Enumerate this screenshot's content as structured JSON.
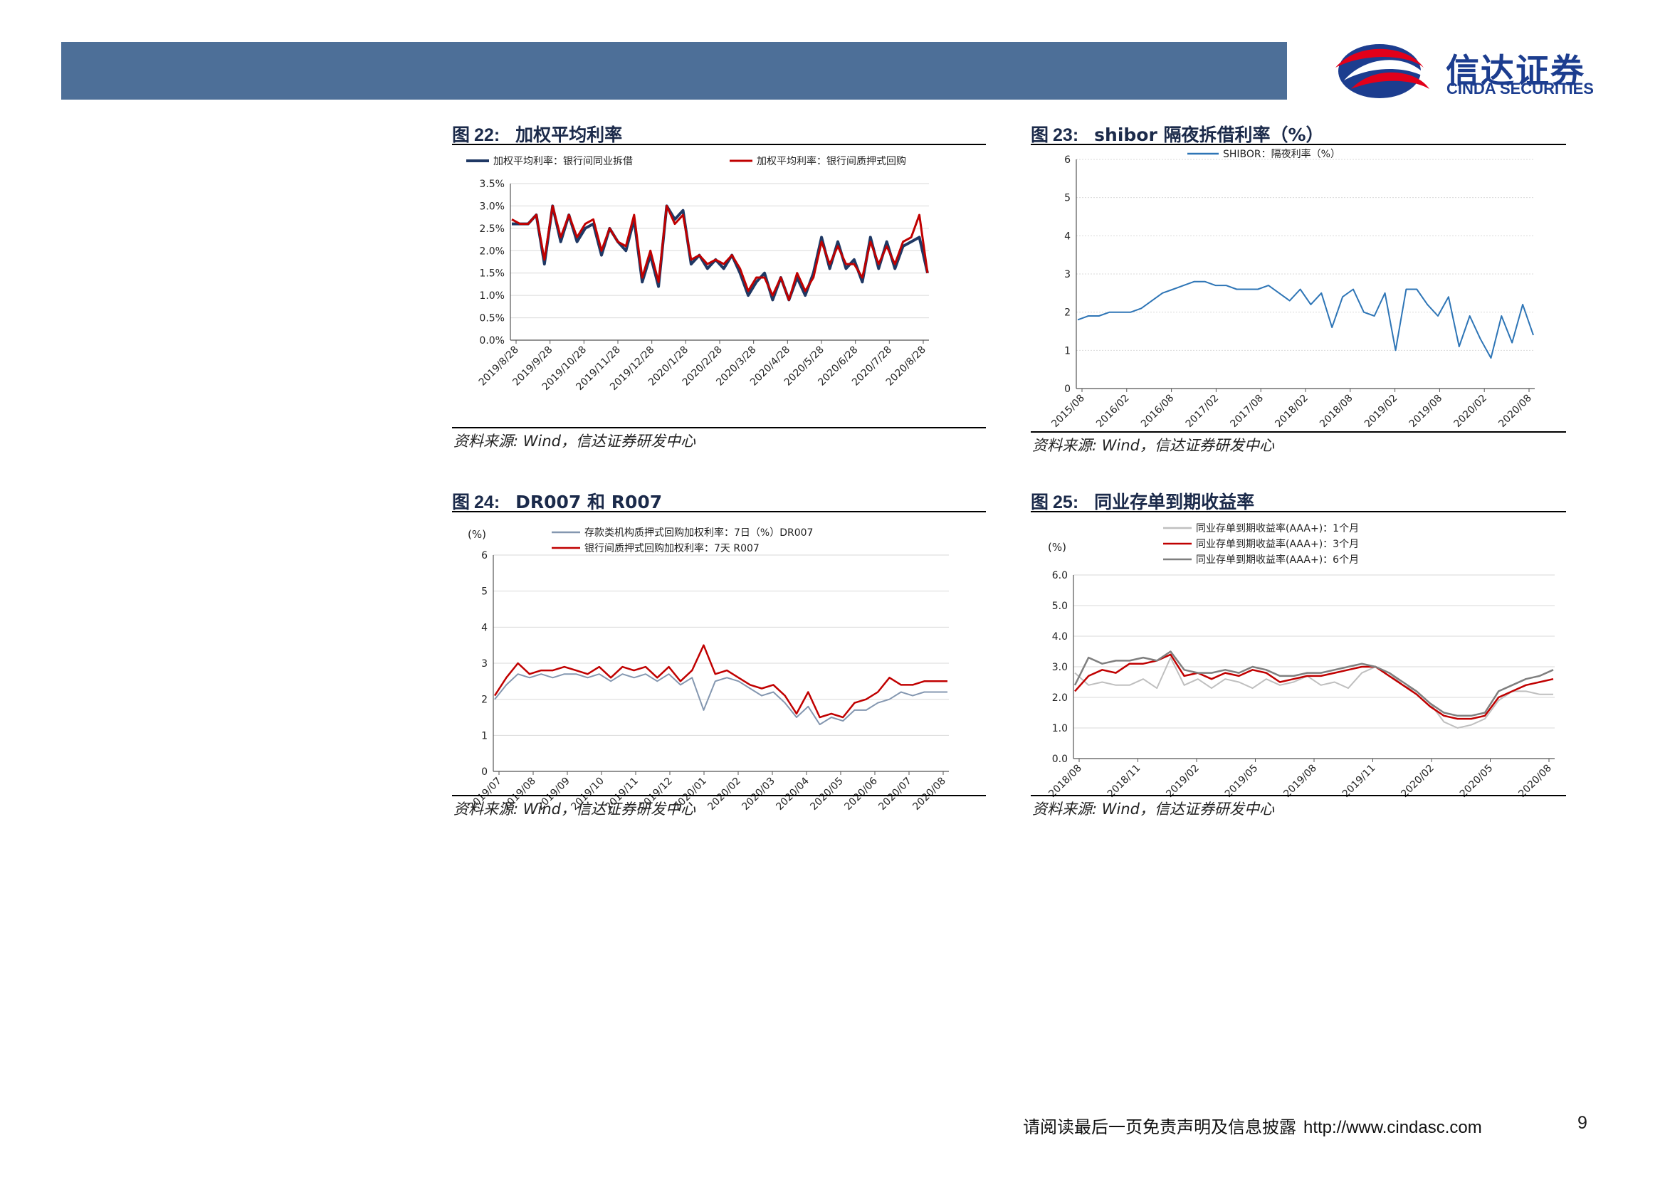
{
  "header": {
    "logo_cn": "信达证券",
    "logo_en": "CINDA SECURITIES",
    "bar_color": "#4d6f98"
  },
  "figures": [
    {
      "label": "图",
      "number": "22:",
      "title": "加权平均利率",
      "source": "资料来源: Wind，信达证券研发中心"
    },
    {
      "label": "图",
      "number": "23:",
      "title": "shibor 隔夜拆借利率（%）",
      "source": "资料来源: Wind，信达证券研发中心"
    },
    {
      "label": "图",
      "number": "24:",
      "title": "DR007 和 R007",
      "source": "资料来源: Wind，信达证券研发中心"
    },
    {
      "label": "图",
      "number": "25:",
      "title": "同业存单到期收益率",
      "source": "资料来源: Wind，信达证券研发中心"
    }
  ],
  "chart_data": [
    {
      "type": "line",
      "ylabel": "",
      "ylim": [
        0,
        3.5
      ],
      "y_ticks": [
        "0.0%",
        "0.5%",
        "1.0%",
        "1.5%",
        "2.0%",
        "2.5%",
        "3.0%",
        "3.5%"
      ],
      "x_ticks": [
        "2019/8/28",
        "2019/9/28",
        "2019/10/28",
        "2019/11/28",
        "2019/12/28",
        "2020/1/28",
        "2020/2/28",
        "2020/3/28",
        "2020/4/28",
        "2020/5/28",
        "2020/6/28",
        "2020/7/28",
        "2020/8/28"
      ],
      "legend": "top",
      "series": [
        {
          "name": "加权平均利率：银行间同业拆借",
          "color": "#1f3864",
          "values": [
            2.6,
            2.6,
            2.6,
            2.8,
            1.7,
            3.0,
            2.2,
            2.8,
            2.2,
            2.5,
            2.6,
            1.9,
            2.5,
            2.2,
            2.0,
            2.7,
            1.3,
            1.9,
            1.2,
            3.0,
            2.7,
            2.9,
            1.7,
            1.9,
            1.6,
            1.8,
            1.6,
            1.9,
            1.5,
            1.0,
            1.3,
            1.5,
            0.9,
            1.4,
            0.9,
            1.4,
            1.0,
            1.5,
            2.3,
            1.6,
            2.2,
            1.6,
            1.8,
            1.3,
            2.3,
            1.6,
            2.2,
            1.6,
            2.1,
            2.2,
            2.3,
            1.5
          ]
        },
        {
          "name": "加权平均利率：银行间质押式回购",
          "color": "#c00000",
          "values": [
            2.7,
            2.6,
            2.6,
            2.8,
            1.8,
            3.0,
            2.3,
            2.8,
            2.3,
            2.6,
            2.7,
            2.0,
            2.5,
            2.2,
            2.1,
            2.8,
            1.4,
            2.0,
            1.3,
            3.0,
            2.6,
            2.8,
            1.8,
            1.9,
            1.7,
            1.8,
            1.7,
            1.9,
            1.6,
            1.1,
            1.4,
            1.4,
            1.0,
            1.4,
            0.9,
            1.5,
            1.1,
            1.4,
            2.2,
            1.7,
            2.1,
            1.7,
            1.7,
            1.4,
            2.2,
            1.7,
            2.1,
            1.7,
            2.2,
            2.3,
            2.8,
            1.5
          ]
        }
      ]
    },
    {
      "type": "line",
      "ylim": [
        0,
        6
      ],
      "y_ticks": [
        "0",
        "1",
        "2",
        "3",
        "4",
        "5",
        "6"
      ],
      "x_ticks": [
        "2015/08",
        "2016/02",
        "2016/08",
        "2017/02",
        "2017/08",
        "2018/02",
        "2018/08",
        "2019/02",
        "2019/08",
        "2020/02",
        "2020/08"
      ],
      "legend": "top",
      "series": [
        {
          "name": "SHIBOR：隔夜利率（%）",
          "color": "#2e75b6",
          "values": [
            1.8,
            1.9,
            1.9,
            2.0,
            2.0,
            2.0,
            2.1,
            2.3,
            2.5,
            2.6,
            2.7,
            2.8,
            2.8,
            2.7,
            2.7,
            2.6,
            2.6,
            2.6,
            2.7,
            2.5,
            2.3,
            2.6,
            2.2,
            2.5,
            1.6,
            2.4,
            2.6,
            2.0,
            1.9,
            2.5,
            1.0,
            2.6,
            2.6,
            2.2,
            1.9,
            2.4,
            1.1,
            1.9,
            1.3,
            0.8,
            1.9,
            1.2,
            2.2,
            1.4
          ]
        }
      ]
    },
    {
      "type": "line",
      "ylabel": "(%)",
      "ylim": [
        0,
        6
      ],
      "y_ticks": [
        "0",
        "1",
        "2",
        "3",
        "4",
        "5",
        "6"
      ],
      "x_ticks": [
        "2019/07",
        "2019/08",
        "2019/09",
        "2019/10",
        "2019/11",
        "2019/12",
        "2020/01",
        "2020/02",
        "2020/03",
        "2020/04",
        "2020/05",
        "2020/06",
        "2020/07",
        "2020/08"
      ],
      "legend": "top",
      "series": [
        {
          "name": "存款类机构质押式回购加权利率：7日（%）DR007",
          "color": "#8497b0",
          "values": [
            2.0,
            2.4,
            2.7,
            2.6,
            2.7,
            2.6,
            2.7,
            2.7,
            2.6,
            2.7,
            2.5,
            2.7,
            2.6,
            2.7,
            2.5,
            2.7,
            2.4,
            2.6,
            1.7,
            2.5,
            2.6,
            2.5,
            2.3,
            2.1,
            2.2,
            1.9,
            1.5,
            1.8,
            1.3,
            1.5,
            1.4,
            1.7,
            1.7,
            1.9,
            2.0,
            2.2,
            2.1,
            2.2,
            2.2,
            2.2
          ]
        },
        {
          "name": "银行间质押式回购加权利率：7天 R007",
          "color": "#c00000",
          "values": [
            2.1,
            2.6,
            3.0,
            2.7,
            2.8,
            2.8,
            2.9,
            2.8,
            2.7,
            2.9,
            2.6,
            2.9,
            2.8,
            2.9,
            2.6,
            2.9,
            2.5,
            2.8,
            3.5,
            2.7,
            2.8,
            2.6,
            2.4,
            2.3,
            2.4,
            2.1,
            1.6,
            2.2,
            1.5,
            1.6,
            1.5,
            1.9,
            2.0,
            2.2,
            2.6,
            2.4,
            2.4,
            2.5,
            2.5,
            2.5
          ]
        }
      ]
    },
    {
      "type": "line",
      "ylabel": "(%)",
      "ylim": [
        0,
        6
      ],
      "y_ticks": [
        "0.0",
        "1.0",
        "2.0",
        "3.0",
        "4.0",
        "5.0",
        "6.0"
      ],
      "x_ticks": [
        "2018/08",
        "2018/11",
        "2019/02",
        "2019/05",
        "2019/08",
        "2019/11",
        "2020/02",
        "2020/05",
        "2020/08"
      ],
      "legend": "top",
      "series": [
        {
          "name": "同业存单到期收益率(AAA+)：1个月",
          "color": "#bfbfbf",
          "values": [
            2.8,
            2.4,
            2.5,
            2.4,
            2.4,
            2.6,
            2.3,
            3.3,
            2.4,
            2.6,
            2.3,
            2.6,
            2.5,
            2.3,
            2.6,
            2.4,
            2.5,
            2.7,
            2.4,
            2.5,
            2.3,
            2.8,
            3.0,
            2.8,
            2.4,
            2.2,
            1.8,
            1.2,
            1.0,
            1.1,
            1.3,
            1.9,
            2.2,
            2.2,
            2.1,
            2.1
          ]
        },
        {
          "name": "同业存单到期收益率(AAA+)：3个月",
          "color": "#c00000",
          "values": [
            2.2,
            2.7,
            2.9,
            2.8,
            3.1,
            3.1,
            3.2,
            3.4,
            2.7,
            2.8,
            2.6,
            2.8,
            2.7,
            2.9,
            2.8,
            2.5,
            2.6,
            2.7,
            2.7,
            2.8,
            2.9,
            3.0,
            3.0,
            2.7,
            2.4,
            2.1,
            1.7,
            1.4,
            1.3,
            1.3,
            1.4,
            2.0,
            2.2,
            2.4,
            2.5,
            2.6
          ]
        },
        {
          "name": "同业存单到期收益率(AAA+)：6个月",
          "color": "#7f7f7f",
          "values": [
            2.4,
            3.3,
            3.1,
            3.2,
            3.2,
            3.3,
            3.2,
            3.5,
            2.9,
            2.8,
            2.8,
            2.9,
            2.8,
            3.0,
            2.9,
            2.7,
            2.7,
            2.8,
            2.8,
            2.9,
            3.0,
            3.1,
            3.0,
            2.8,
            2.5,
            2.2,
            1.8,
            1.5,
            1.4,
            1.4,
            1.5,
            2.2,
            2.4,
            2.6,
            2.7,
            2.9
          ]
        }
      ]
    }
  ],
  "footer": {
    "disclaimer": "请阅读最后一页免责声明及信息披露",
    "url": "http://www.cindasc.com",
    "page": "9"
  }
}
